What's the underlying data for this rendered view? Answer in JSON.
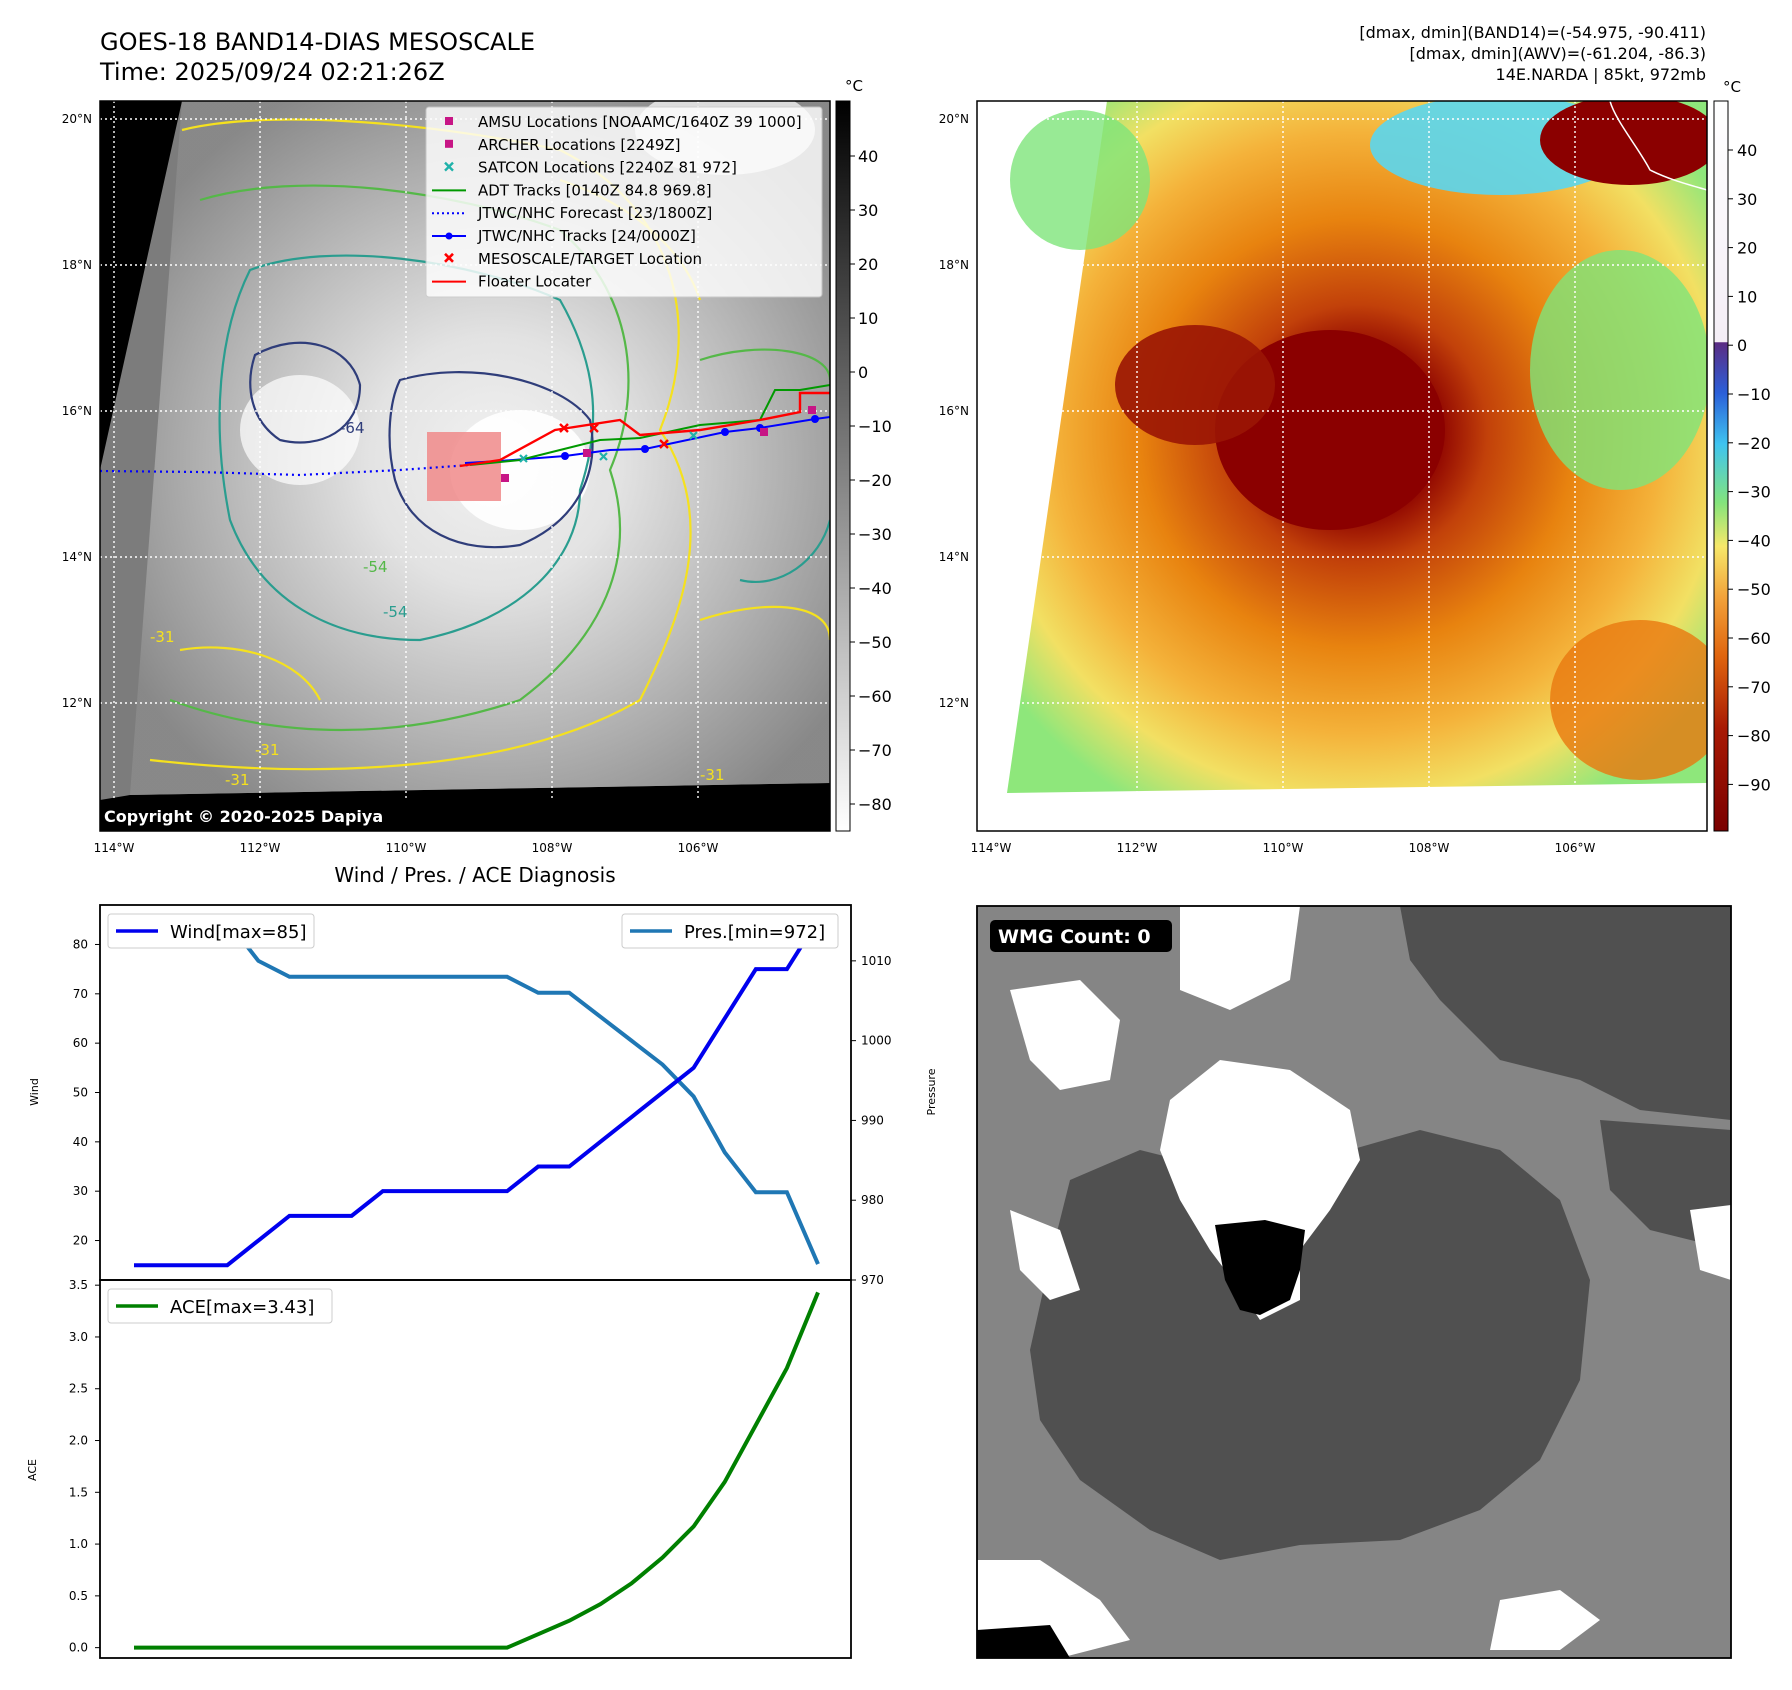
{
  "header": {
    "title_line1": "GOES-18 BAND14-DIAS MESOSCALE",
    "title_line2": "Time: 2025/09/24 02:21:26Z",
    "info_line1": "[dmax, dmin](BAND14)=(-54.975, -90.411)",
    "info_line2": "[dmax, dmin](AWV)=(-61.204, -86.3)",
    "info_line3": "14E.NARDA | 85kt, 972mb"
  },
  "copyright": "Copyright © 2020-2025 Dapiya",
  "colors": {
    "wind": "#0000ee",
    "pressure": "#1f77b4",
    "ace": "#008000",
    "ir_dark": "#8b0000",
    "ir_orange": "#e8780f",
    "ir_yellow": "#f7d35a",
    "ir_green": "#7ee57a",
    "ir_cyan": "#5ad6f0",
    "contour_yellow": "#f5e11e",
    "contour_green": "#55b848",
    "contour_teal": "#2a9d8f",
    "contour_navy": "#2f3d7a",
    "floater_box": "#f08a8a",
    "track_red": "#ff0000",
    "track_blue": "#0000ff",
    "track_green": "#009900",
    "marker_magenta": "#c71585",
    "marker_cyan": "#20b2aa",
    "wmg_bg": "#858585",
    "wmg_dark": "#505050",
    "wmg_white": "#ffffff",
    "wmg_black": "#000000"
  },
  "map": {
    "lon_labels": [
      "114°W",
      "112°W",
      "110°W",
      "108°W",
      "106°W"
    ],
    "lat_labels": [
      "20°N",
      "18°N",
      "16°N",
      "14°N",
      "12°N"
    ],
    "unit": "°C",
    "contour_labels": [
      "-31",
      "-54",
      "-54",
      "-64",
      "-31",
      "-31",
      "-31"
    ],
    "ir_ticks": [
      "40",
      "30",
      "20",
      "10",
      "0",
      "−10",
      "−20",
      "−30",
      "−40",
      "−50",
      "−60",
      "−70",
      "−80"
    ],
    "awv_ticks": [
      "40",
      "30",
      "20",
      "10",
      "0",
      "−10",
      "−20",
      "−30",
      "−40",
      "−50",
      "−60",
      "−70",
      "−80",
      "−90"
    ]
  },
  "legend": [
    {
      "label": "AMSU Locations [NOAAMC/1640Z 39 1000]",
      "marker": "square-magenta"
    },
    {
      "label": "ARCHER Locations [2249Z]",
      "marker": "square-magenta"
    },
    {
      "label": "SATCON Locations [2240Z 81 972]",
      "marker": "x-cyan"
    },
    {
      "label": "ADT Tracks [0140Z 84.8 969.8]",
      "marker": "line-green"
    },
    {
      "label": "JTWC/NHC Forecast [23/1800Z]",
      "marker": "dotted-blue"
    },
    {
      "label": "JTWC/NHC Tracks [24/0000Z]",
      "marker": "line-dot-blue"
    },
    {
      "label": "MESOSCALE/TARGET Location",
      "marker": "x-red"
    },
    {
      "label": "Floater Locater",
      "marker": "line-red"
    }
  ],
  "wmg": {
    "label": "WMG Count: 0"
  },
  "chart_data": [
    {
      "type": "line",
      "title": "Wind / Pres. / ACE Diagnosis",
      "ylabel": "Wind",
      "ylabel_right": "Pressure",
      "ylim": [
        12,
        88
      ],
      "ylim_right": [
        970,
        1017
      ],
      "yticks": [
        20,
        30,
        40,
        50,
        60,
        70,
        80
      ],
      "yticks_right": [
        970,
        980,
        990,
        1000,
        1010
      ],
      "x": [
        0,
        1,
        2,
        3,
        4,
        5,
        6,
        7,
        8,
        9,
        10,
        11,
        12,
        13,
        14,
        15,
        16,
        17,
        18,
        19,
        20,
        21,
        22
      ],
      "series": [
        {
          "name": "Wind[max=85]",
          "axis": "left",
          "values": [
            15,
            15,
            15,
            15,
            20,
            25,
            25,
            25,
            30,
            30,
            30,
            30,
            30,
            35,
            35,
            40,
            45,
            50,
            55,
            65,
            75,
            75,
            85
          ]
        },
        {
          "name": "Pres.[min=972]",
          "axis": "right",
          "values": [
            1015,
            1015,
            1015,
            1015,
            1010,
            1008,
            1008,
            1008,
            1008,
            1008,
            1008,
            1008,
            1008,
            1006,
            1006,
            1003,
            1000,
            997,
            993,
            986,
            981,
            981,
            972
          ]
        }
      ]
    },
    {
      "type": "line",
      "ylabel": "ACE",
      "ylim": [
        -0.1,
        3.55
      ],
      "yticks": [
        0.0,
        0.5,
        1.0,
        1.5,
        2.0,
        2.5,
        3.0,
        3.5
      ],
      "yticks_labels": [
        "0.0",
        "0.5",
        "1.0",
        "1.5",
        "2.0",
        "2.5",
        "3.0",
        "3.5"
      ],
      "x": [
        0,
        1,
        2,
        3,
        4,
        5,
        6,
        7,
        8,
        9,
        10,
        11,
        12,
        13,
        14,
        15,
        16,
        17,
        18,
        19,
        20,
        21,
        22
      ],
      "series": [
        {
          "name": "ACE[max=3.43]",
          "values": [
            0,
            0,
            0,
            0,
            0,
            0,
            0,
            0,
            0,
            0,
            0,
            0,
            0,
            0.13,
            0.26,
            0.42,
            0.62,
            0.87,
            1.17,
            1.6,
            2.15,
            2.7,
            3.43
          ]
        }
      ]
    }
  ]
}
